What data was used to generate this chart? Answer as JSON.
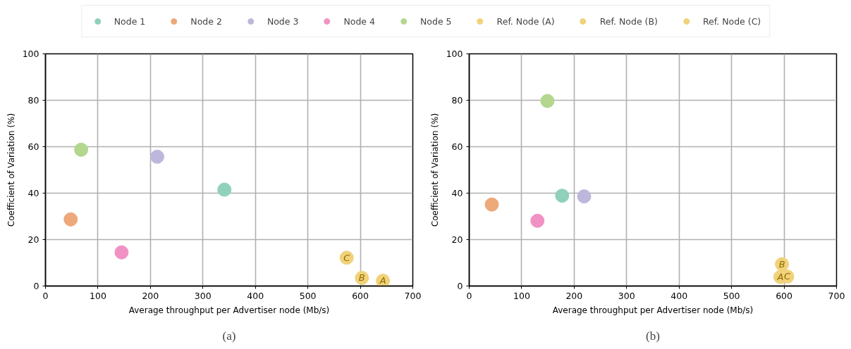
{
  "chart_data": [
    {
      "type": "scatter",
      "title": "(a)",
      "xlabel": "Average throughput per Advertiser node (Mb/s)",
      "ylabel": "Coefficient of Variation (%)",
      "xlim": [
        0,
        700
      ],
      "xticks": [
        0,
        100,
        200,
        300,
        400,
        500,
        600,
        700
      ],
      "ylim": [
        0,
        100
      ],
      "yticks": [
        0,
        20,
        40,
        60,
        80,
        100
      ],
      "grid": true,
      "legend": "top",
      "marker": "circle",
      "series": [
        {
          "name": "Node 1",
          "color": "#8fd1bb",
          "x": [
            341
          ],
          "values": [
            41.5
          ]
        },
        {
          "name": "Node 2",
          "color": "#eda979",
          "x": [
            48
          ],
          "values": [
            28.7
          ]
        },
        {
          "name": "Node 3",
          "color": "#bdb7db",
          "x": [
            213
          ],
          "values": [
            55.7
          ]
        },
        {
          "name": "Node 4",
          "color": "#f291c4",
          "x": [
            145
          ],
          "values": [
            14.5
          ]
        },
        {
          "name": "Node 5",
          "color": "#b3d78e",
          "x": [
            68
          ],
          "values": [
            58.7
          ]
        },
        {
          "name": "Ref. Node (A)",
          "color": "#f1d27a",
          "x": [
            643
          ],
          "values": [
            2.3
          ]
        },
        {
          "name": "Ref. Node (B)",
          "color": "#f1d27a",
          "x": [
            603
          ],
          "values": [
            3.5
          ]
        },
        {
          "name": "Ref. Node (C)",
          "color": "#f1d27a",
          "x": [
            574
          ],
          "values": [
            12.2
          ]
        }
      ],
      "annotations": [
        {
          "text": "A",
          "x": 643,
          "y": 2.3
        },
        {
          "text": "B",
          "x": 603,
          "y": 3.5
        },
        {
          "text": "C",
          "x": 574,
          "y": 12.2
        }
      ]
    },
    {
      "type": "scatter",
      "title": "(b)",
      "xlabel": "Average throughput per Advertiser node (Mb/s)",
      "ylabel": "Coefficient of Variation (%)",
      "xlim": [
        0,
        700
      ],
      "xticks": [
        0,
        100,
        200,
        300,
        400,
        500,
        600,
        700
      ],
      "ylim": [
        0,
        100
      ],
      "yticks": [
        0,
        20,
        40,
        60,
        80,
        100
      ],
      "grid": true,
      "marker": "circle",
      "series": [
        {
          "color": "#8fd1bb",
          "x": [
            177
          ],
          "values": [
            38.9
          ]
        },
        {
          "color": "#eda979",
          "x": [
            43
          ],
          "values": [
            35.1
          ]
        },
        {
          "color": "#bdb7db",
          "x": [
            219
          ],
          "values": [
            38.6
          ]
        },
        {
          "color": "#f291c4",
          "x": [
            130
          ],
          "values": [
            28.1
          ]
        },
        {
          "color": "#b3d78e",
          "x": [
            149
          ],
          "values": [
            79.7
          ]
        },
        {
          "color": "#f1d27a",
          "x": [
            593
          ],
          "values": [
            3.9
          ]
        },
        {
          "color": "#f1d27a",
          "x": [
            596
          ],
          "values": [
            9.4
          ]
        },
        {
          "color": "#f1d27a",
          "x": [
            606
          ],
          "values": [
            4.1
          ]
        }
      ],
      "annotations": [
        {
          "text": "A",
          "x": 593,
          "y": 3.9
        },
        {
          "text": "B",
          "x": 596,
          "y": 9.4
        },
        {
          "text": "C",
          "x": 606,
          "y": 4.1
        }
      ]
    }
  ]
}
